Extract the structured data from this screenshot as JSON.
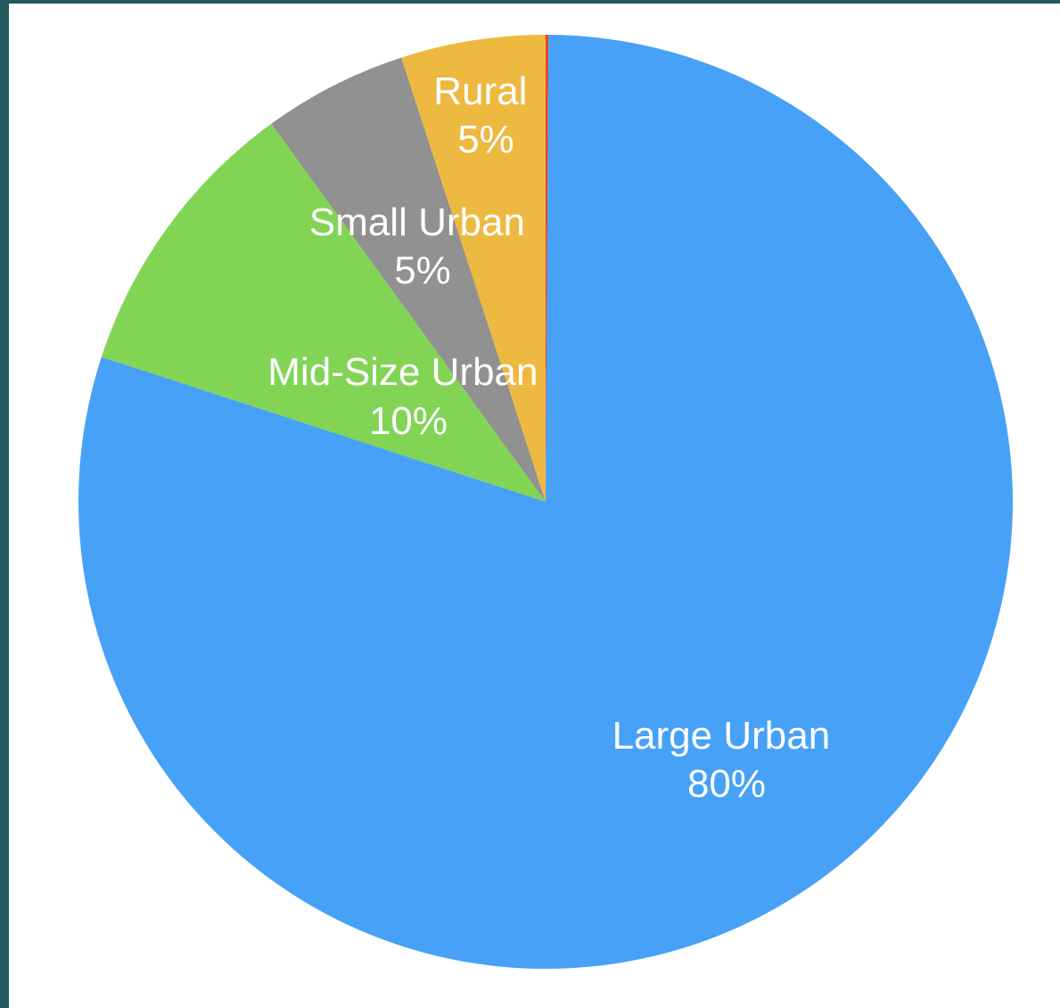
{
  "chart_data": {
    "type": "pie",
    "title": "",
    "slices": [
      {
        "name": "Large Urban",
        "value": 80,
        "percent_label": "80%",
        "color": "#46a1f7"
      },
      {
        "name": "Mid-Size Urban",
        "value": 10,
        "percent_label": "10%",
        "color": "#82d455"
      },
      {
        "name": "Small Urban",
        "value": 5,
        "percent_label": "5%",
        "color": "#919191"
      },
      {
        "name": "Rural",
        "value": 5,
        "percent_label": "5%",
        "color": "#eeb941"
      },
      {
        "name": "",
        "value": 0.1,
        "percent_label": "",
        "color": "#e8442d"
      }
    ],
    "start_angle": "12 o'clock",
    "direction": "clockwise",
    "legend": "none"
  }
}
